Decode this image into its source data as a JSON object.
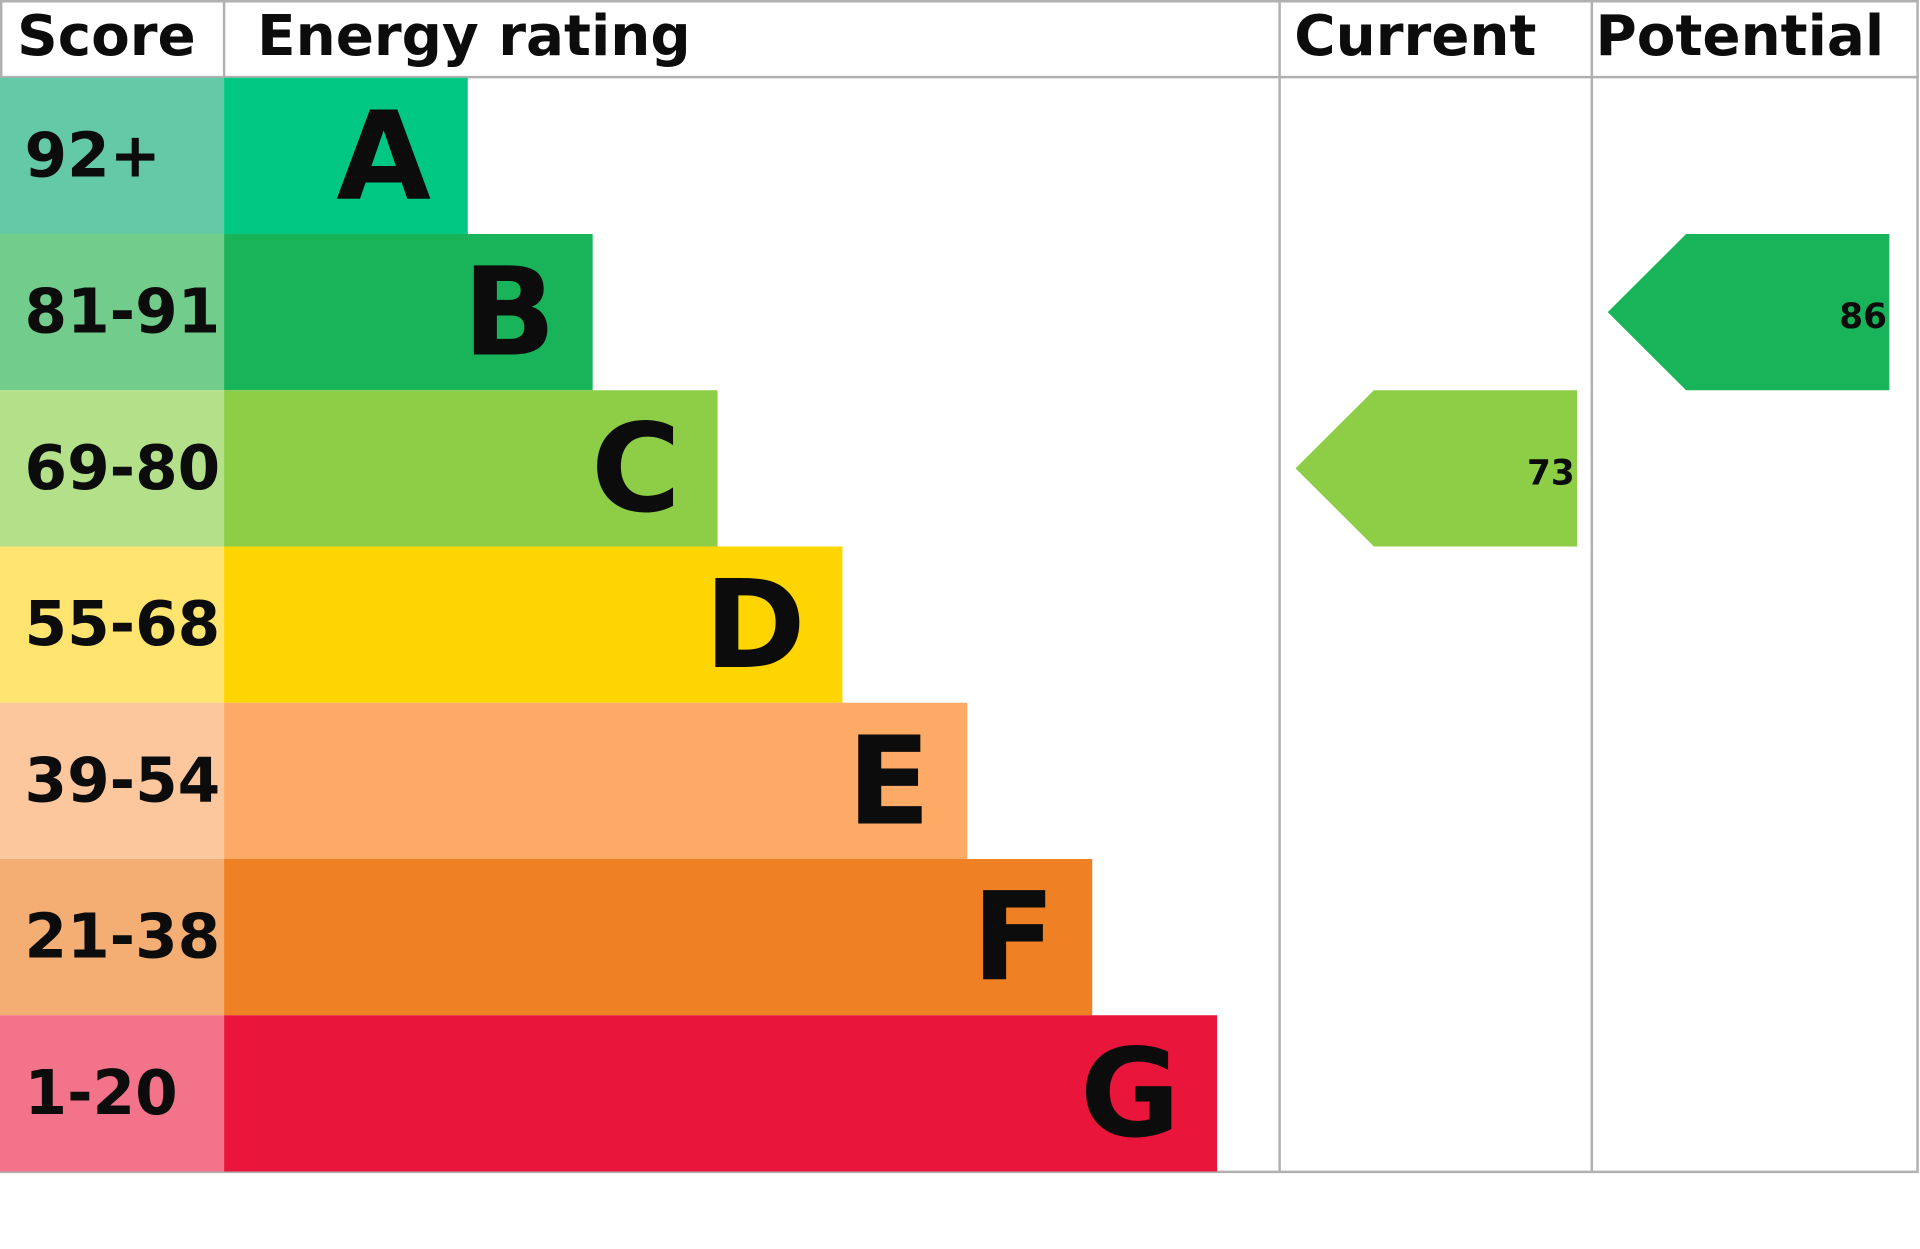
{
  "header": {
    "score": "Score",
    "rating": "Energy rating",
    "current": "Current",
    "potential": "Potential"
  },
  "bands": [
    {
      "score": "92+",
      "letter": "A",
      "color": "#00c781",
      "score_color": "#64c9a6"
    },
    {
      "score": "81-91",
      "letter": "B",
      "color": "#19b459",
      "score_color": "#72cd8c"
    },
    {
      "score": "69-80",
      "letter": "C",
      "color": "#8dce46",
      "score_color": "#b4e08a"
    },
    {
      "score": "55-68",
      "letter": "D",
      "color": "#ffd500",
      "score_color": "#ffe46f"
    },
    {
      "score": "39-54",
      "letter": "E",
      "color": "#fcaa65",
      "score_color": "#fdc79e"
    },
    {
      "score": "21-38",
      "letter": "F",
      "color": "#ef8023",
      "score_color": "#f4ad73"
    },
    {
      "score": "1-20",
      "letter": "G",
      "color": "#e9153b",
      "score_color": "#f2738a"
    }
  ],
  "current": 73,
  "potential": 86
}
